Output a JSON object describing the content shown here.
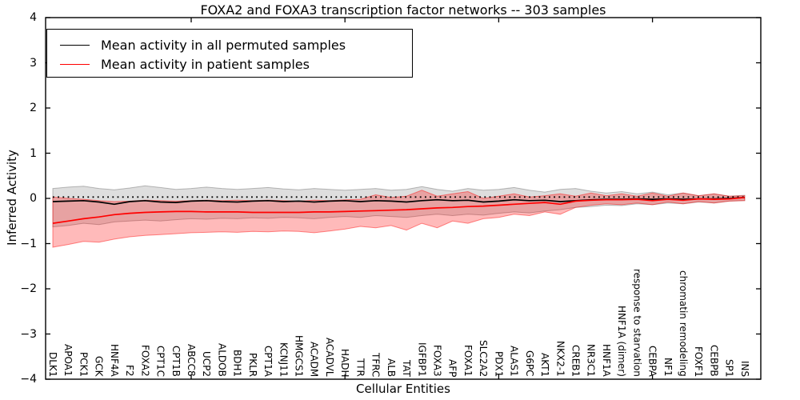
{
  "title": "FOXA2 and FOXA3 transcription factor networks -- 303 samples",
  "y_axis": {
    "label": "Inferred Activity",
    "ticks": [
      4,
      3,
      2,
      1,
      0,
      -1,
      -2,
      -3,
      -4
    ]
  },
  "x_axis": {
    "label": "Cellular Entities",
    "top_tick_indices": [
      9,
      19,
      29,
      39
    ]
  },
  "chart_data": {
    "type": "line",
    "title": "FOXA2 and FOXA3 transcription factor networks -- 303 samples",
    "xlabel": "Cellular Entities",
    "ylabel": "Inferred Activity",
    "ylim": [
      -4,
      4
    ],
    "grid": false,
    "legend_position": "upper left",
    "categories": [
      "DLK1",
      "APOA1",
      "PCK1",
      "GCK",
      "HNF4A",
      "F2",
      "FOXA2",
      "CPT1C",
      "CPT1B",
      "ABCC8",
      "UCP2",
      "ALDOB",
      "BDH1",
      "PKLR",
      "CPT1A",
      "KCNJ11",
      "HMGCS1",
      "ACADM",
      "ACADVL",
      "HADH",
      "TTR",
      "TFRC",
      "ALB",
      "TAT",
      "IGFBP1",
      "FOXA3",
      "AFP",
      "FOXA1",
      "SLC2A2",
      "PDX1",
      "ALAS1",
      "G6PC",
      "AKT1",
      "NKX2-1",
      "CREB1",
      "NR3C1",
      "HNF1A",
      "HNF1A (dimer)",
      "response to starvation",
      "CEBPA",
      "NF1",
      "chromatin remodeling",
      "FOXF1",
      "CEBPB",
      "SP1",
      "INS"
    ],
    "reference_line": {
      "value": 0.03,
      "style": "dotted",
      "color": "#000000"
    },
    "series": [
      {
        "name": "Mean activity in all permuted samples",
        "color": "#000000",
        "band_fill": "rgba(0,0,0,0.13)",
        "band_edge": "rgba(0,0,0,0.25)",
        "values": [
          -0.07,
          -0.06,
          -0.05,
          -0.08,
          -0.13,
          -0.07,
          -0.05,
          -0.08,
          -0.09,
          -0.06,
          -0.05,
          -0.07,
          -0.08,
          -0.06,
          -0.05,
          -0.07,
          -0.06,
          -0.08,
          -0.06,
          -0.05,
          -0.07,
          -0.05,
          -0.06,
          -0.08,
          -0.05,
          -0.03,
          -0.05,
          -0.04,
          -0.08,
          -0.06,
          -0.03,
          -0.05,
          -0.04,
          -0.07,
          -0.05,
          -0.03,
          -0.02,
          -0.02,
          -0.01,
          -0.02,
          -0.01,
          -0.02,
          -0.01,
          -0.01,
          0.0,
          0.02
        ],
        "band_upper": [
          0.22,
          0.25,
          0.27,
          0.22,
          0.19,
          0.23,
          0.28,
          0.24,
          0.2,
          0.22,
          0.25,
          0.22,
          0.2,
          0.22,
          0.24,
          0.21,
          0.19,
          0.22,
          0.2,
          0.18,
          0.2,
          0.22,
          0.18,
          0.2,
          0.26,
          0.2,
          0.16,
          0.22,
          0.18,
          0.2,
          0.24,
          0.18,
          0.14,
          0.2,
          0.22,
          0.16,
          0.12,
          0.15,
          0.1,
          0.14,
          0.08,
          0.12,
          0.06,
          0.1,
          0.05,
          0.07
        ],
        "band_lower": [
          -0.63,
          -0.6,
          -0.55,
          -0.58,
          -0.52,
          -0.5,
          -0.48,
          -0.5,
          -0.47,
          -0.45,
          -0.46,
          -0.44,
          -0.45,
          -0.43,
          -0.44,
          -0.42,
          -0.43,
          -0.45,
          -0.42,
          -0.4,
          -0.42,
          -0.38,
          -0.4,
          -0.42,
          -0.38,
          -0.35,
          -0.38,
          -0.35,
          -0.37,
          -0.33,
          -0.3,
          -0.32,
          -0.28,
          -0.25,
          -0.2,
          -0.18,
          -0.15,
          -0.16,
          -0.12,
          -0.14,
          -0.1,
          -0.12,
          -0.08,
          -0.1,
          -0.06,
          -0.05
        ]
      },
      {
        "name": "Mean activity in patient samples",
        "color": "#ff0000",
        "band_fill": "rgba(255,0,0,0.27)",
        "band_edge": "rgba(255,0,0,0.45)",
        "values": [
          -0.55,
          -0.5,
          -0.45,
          -0.41,
          -0.36,
          -0.33,
          -0.31,
          -0.3,
          -0.29,
          -0.29,
          -0.3,
          -0.3,
          -0.3,
          -0.31,
          -0.31,
          -0.31,
          -0.31,
          -0.3,
          -0.3,
          -0.29,
          -0.28,
          -0.27,
          -0.26,
          -0.25,
          -0.23,
          -0.21,
          -0.2,
          -0.18,
          -0.17,
          -0.15,
          -0.13,
          -0.11,
          -0.09,
          -0.13,
          -0.06,
          -0.04,
          -0.03,
          -0.03,
          -0.02,
          -0.05,
          -0.02,
          -0.04,
          -0.01,
          -0.02,
          -0.01,
          0.02
        ],
        "band_upper": [
          0.03,
          0.0,
          -0.02,
          -0.05,
          -0.07,
          -0.06,
          -0.04,
          -0.05,
          -0.06,
          -0.05,
          -0.04,
          -0.05,
          -0.04,
          -0.05,
          -0.04,
          -0.05,
          -0.06,
          -0.04,
          -0.05,
          -0.03,
          -0.02,
          0.08,
          0.02,
          0.05,
          0.18,
          0.05,
          0.1,
          0.15,
          0.0,
          0.05,
          0.1,
          0.03,
          0.06,
          0.1,
          0.05,
          0.12,
          0.06,
          0.1,
          0.05,
          0.12,
          0.05,
          0.12,
          0.06,
          0.1,
          0.05,
          0.06
        ],
        "band_lower": [
          -1.08,
          -1.02,
          -0.95,
          -0.97,
          -0.9,
          -0.85,
          -0.82,
          -0.8,
          -0.78,
          -0.76,
          -0.75,
          -0.74,
          -0.75,
          -0.73,
          -0.74,
          -0.72,
          -0.73,
          -0.76,
          -0.72,
          -0.68,
          -0.62,
          -0.65,
          -0.6,
          -0.7,
          -0.55,
          -0.65,
          -0.5,
          -0.55,
          -0.45,
          -0.42,
          -0.35,
          -0.38,
          -0.3,
          -0.35,
          -0.2,
          -0.15,
          -0.12,
          -0.14,
          -0.1,
          -0.14,
          -0.08,
          -0.12,
          -0.07,
          -0.1,
          -0.06,
          -0.05
        ]
      }
    ]
  }
}
